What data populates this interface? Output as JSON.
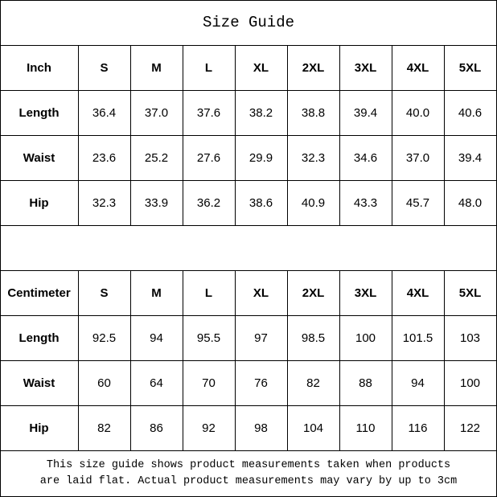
{
  "title": "Size Guide",
  "sizes": [
    "S",
    "M",
    "L",
    "XL",
    "2XL",
    "3XL",
    "4XL",
    "5XL"
  ],
  "tables": [
    {
      "unit": "Inch",
      "rows": [
        {
          "label": "Length",
          "values": [
            "36.4",
            "37.0",
            "37.6",
            "38.2",
            "38.8",
            "39.4",
            "40.0",
            "40.6"
          ]
        },
        {
          "label": "Waist",
          "values": [
            "23.6",
            "25.2",
            "27.6",
            "29.9",
            "32.3",
            "34.6",
            "37.0",
            "39.4"
          ]
        },
        {
          "label": "Hip",
          "values": [
            "32.3",
            "33.9",
            "36.2",
            "38.6",
            "40.9",
            "43.3",
            "45.7",
            "48.0"
          ]
        }
      ]
    },
    {
      "unit": "Centimeter",
      "rows": [
        {
          "label": "Length",
          "values": [
            "92.5",
            "94",
            "95.5",
            "97",
            "98.5",
            "100",
            "101.5",
            "103"
          ]
        },
        {
          "label": "Waist",
          "values": [
            "60",
            "64",
            "70",
            "76",
            "82",
            "88",
            "94",
            "100"
          ]
        },
        {
          "label": "Hip",
          "values": [
            "82",
            "86",
            "92",
            "98",
            "104",
            "110",
            "116",
            "122"
          ]
        }
      ]
    }
  ],
  "footer": {
    "line1": "This size guide shows product measurements taken when products",
    "line2": "are laid flat. Actual product measurements may vary by up to 3cm"
  }
}
